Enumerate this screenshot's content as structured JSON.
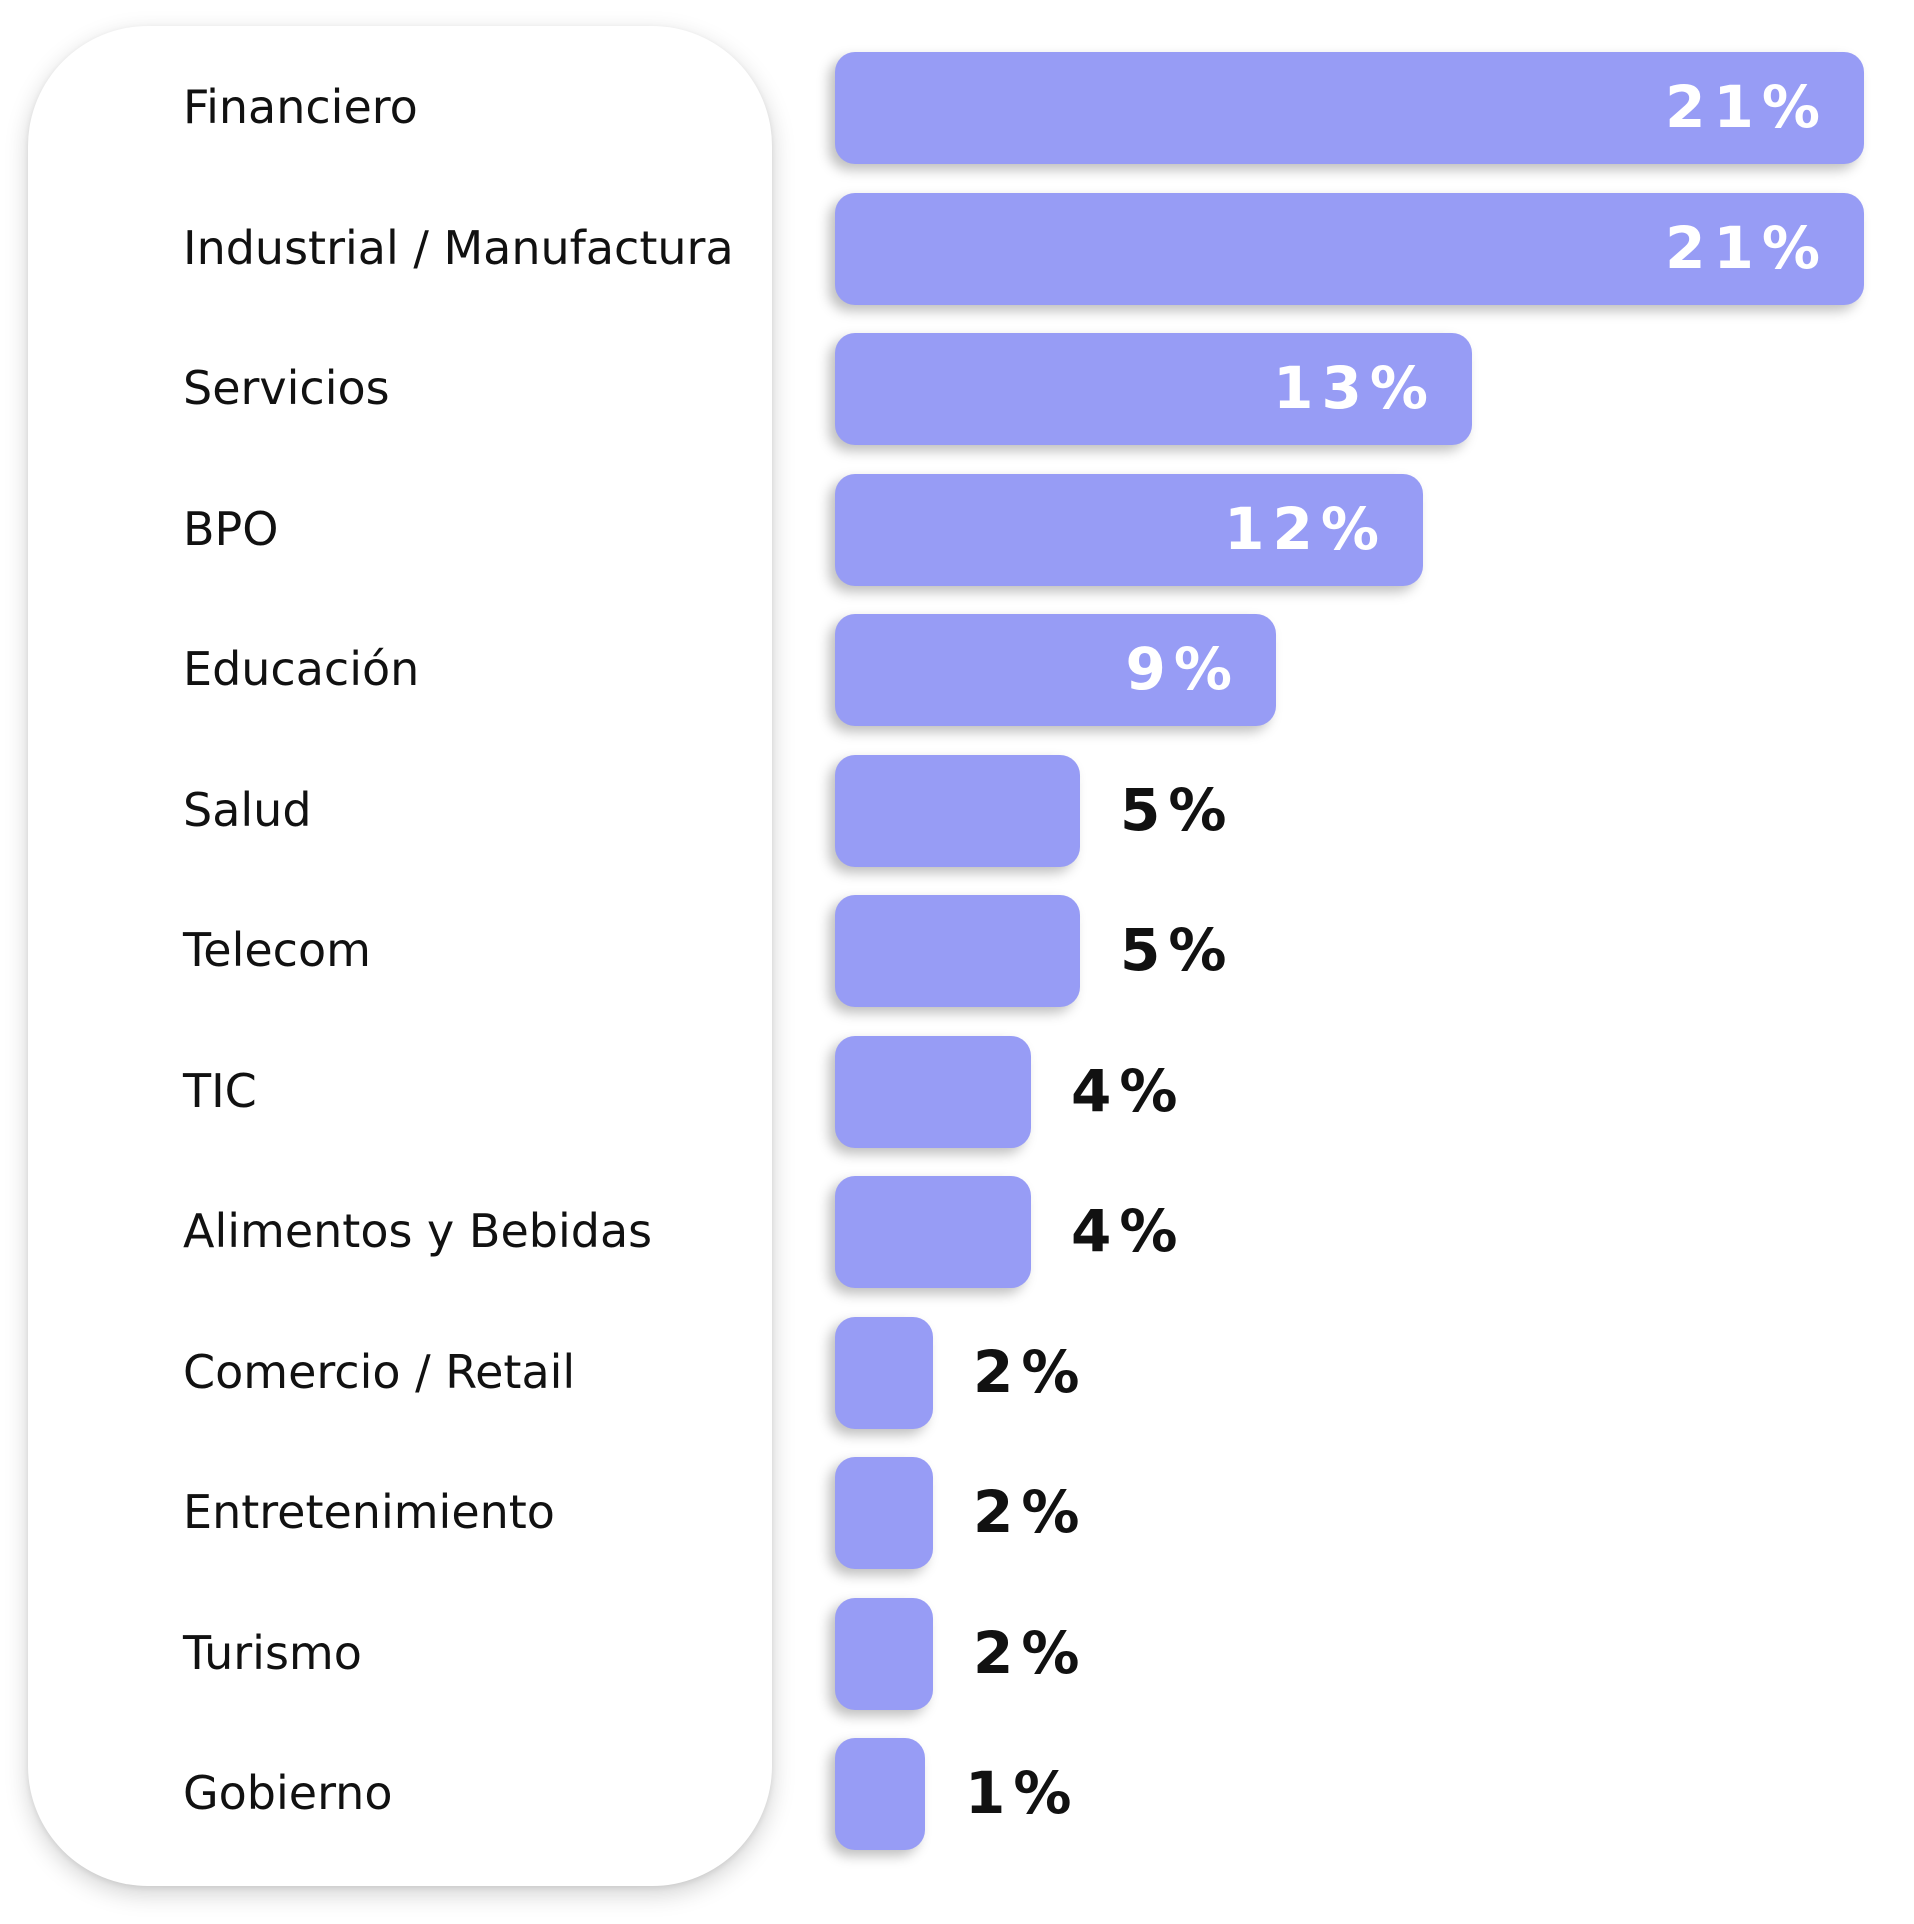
{
  "chart_data": {
    "type": "bar",
    "orientation": "horizontal",
    "unit": "%",
    "categories": [
      "Financiero",
      "Industrial / Manufactura",
      "Servicios",
      "BPO",
      "Educación",
      "Salud",
      "Telecom",
      "TIC",
      "Alimentos y Bebidas",
      "Comercio / Retail",
      "Entretenimiento",
      "Turismo",
      "Gobierno"
    ],
    "values": [
      21,
      21,
      13,
      12,
      9,
      5,
      5,
      4,
      4,
      2,
      2,
      2,
      1
    ],
    "value_labels": [
      "21%",
      "21%",
      "13%",
      "12%",
      "9%",
      "5%",
      "5%",
      "4%",
      "4%",
      "2%",
      "2%",
      "2%",
      "1%"
    ],
    "title": "",
    "xlabel": "",
    "ylabel": "",
    "grid": false,
    "legend": "none",
    "colors": {
      "bar": "#979cf5",
      "label_inside": "#ffffff",
      "label_outside": "#111111"
    }
  }
}
